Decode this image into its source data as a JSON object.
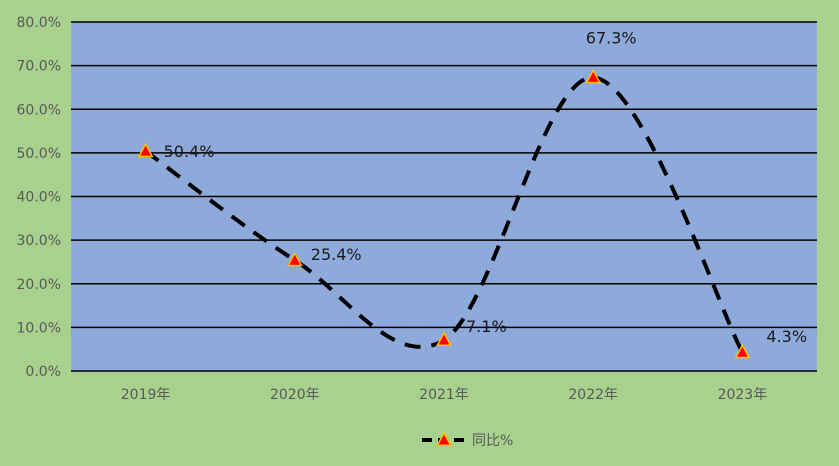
{
  "chart_data": {
    "type": "line",
    "categories": [
      "2019年",
      "2020年",
      "2021年",
      "2022年",
      "2023年"
    ],
    "series": [
      {
        "name": "同比%",
        "values": [
          50.4,
          25.4,
          7.1,
          67.3,
          4.3
        ],
        "labels": [
          "50.4%",
          "25.4%",
          "7.1%",
          "67.3%",
          "4.3%"
        ]
      }
    ],
    "ylim": [
      0,
      80
    ],
    "yticks": [
      "0.0%",
      "10.0%",
      "20.0%",
      "30.0%",
      "40.0%",
      "50.0%",
      "60.0%",
      "70.0%",
      "80.0%"
    ],
    "grid": true,
    "legend_position": "bottom-center",
    "colors": {
      "background": "#a9d18e",
      "plot_area": "#8eaadb",
      "line": "#000000",
      "marker_fill": "#ff0000",
      "marker_outline": "#ffc000"
    }
  },
  "legend": {
    "label": "同比%"
  }
}
